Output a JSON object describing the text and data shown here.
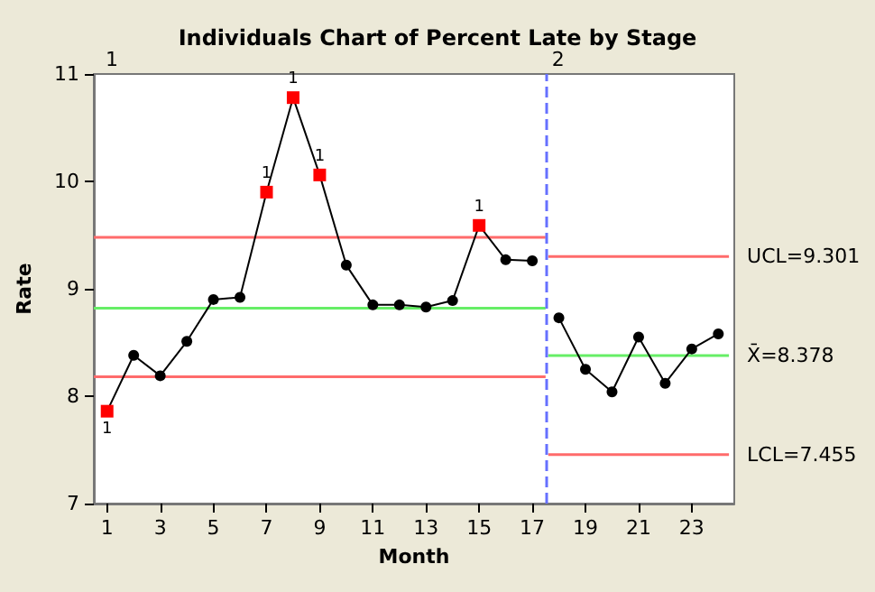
{
  "chart_data": {
    "type": "line",
    "title": "Individuals Chart of Percent Late by Stage",
    "xlabel": "Month",
    "ylabel": "Rate",
    "xlim": [
      0.5,
      24.6
    ],
    "xticks": [
      1,
      3,
      5,
      7,
      9,
      11,
      13,
      15,
      17,
      19,
      21,
      23
    ],
    "ylim": [
      7,
      11
    ],
    "yticks": [
      7,
      8,
      9,
      10,
      11
    ],
    "grid": false,
    "legend": false,
    "series": [
      {
        "color": "#ff6b6b",
        "x": [
          0.5,
          17.5
        ],
        "values": [
          9.48,
          9.48
        ]
      },
      {
        "color": "#66ee66",
        "x": [
          0.5,
          17.5
        ],
        "values": [
          8.82,
          8.82
        ]
      },
      {
        "color": "#ff6b6b",
        "x": [
          0.5,
          17.5
        ],
        "values": [
          8.18,
          8.18
        ]
      },
      {
        "name": "UCL=9.301",
        "color": "#ff6b6b",
        "x": [
          17.6,
          24.4
        ],
        "values": [
          9.301,
          9.301
        ]
      },
      {
        "name": "X̄=8.378",
        "color": "#66ee66",
        "x": [
          17.6,
          24.4
        ],
        "values": [
          8.378,
          8.378
        ]
      },
      {
        "name": "LCL=7.455",
        "color": "#ff6b6b",
        "x": [
          17.6,
          24.4
        ],
        "values": [
          7.455,
          7.455
        ]
      },
      {
        "color": "#000000",
        "marker": "none",
        "x": [
          1,
          2,
          3,
          4,
          5,
          6,
          7,
          8,
          9,
          10,
          11,
          12,
          13,
          14,
          15,
          16,
          17
        ],
        "values": [
          7.86,
          8.38,
          8.19,
          8.51,
          8.9,
          8.92,
          9.9,
          10.78,
          10.06,
          9.22,
          8.85,
          8.85,
          8.83,
          8.89,
          9.59,
          9.27,
          9.26
        ]
      },
      {
        "type": "scatter",
        "color": "#000000",
        "marker": "circle",
        "x": [
          2,
          3,
          4,
          5,
          6,
          10,
          11,
          12,
          13,
          14,
          16,
          17
        ],
        "values": [
          8.38,
          8.19,
          8.51,
          8.9,
          8.92,
          9.22,
          8.85,
          8.85,
          8.83,
          8.89,
          9.27,
          9.26
        ]
      },
      {
        "type": "scatter",
        "color": "#ff0000",
        "marker": "square",
        "x": [
          1,
          7,
          8,
          9,
          15
        ],
        "values": [
          7.86,
          9.9,
          10.78,
          10.06,
          9.59
        ]
      },
      {
        "color": "#000000",
        "marker": "circle",
        "x": [
          18,
          19,
          20,
          21,
          22,
          23,
          24
        ],
        "values": [
          8.73,
          8.25,
          8.04,
          8.55,
          8.12,
          8.44,
          8.58
        ]
      }
    ],
    "ref_lines": [
      {
        "axis": "x",
        "value": 17.5,
        "color": "#6670ff",
        "line_style": "dashed"
      }
    ],
    "annotations": [
      "1",
      "2",
      {
        "text": "1",
        "x": 1,
        "y": 7.86
      },
      {
        "text": "1",
        "x": 7,
        "y": 9.9
      },
      {
        "text": "1",
        "x": 8,
        "y": 10.78
      },
      {
        "text": "1",
        "x": 9,
        "y": 10.06
      },
      {
        "text": "1",
        "x": 15,
        "y": 9.59
      }
    ]
  }
}
